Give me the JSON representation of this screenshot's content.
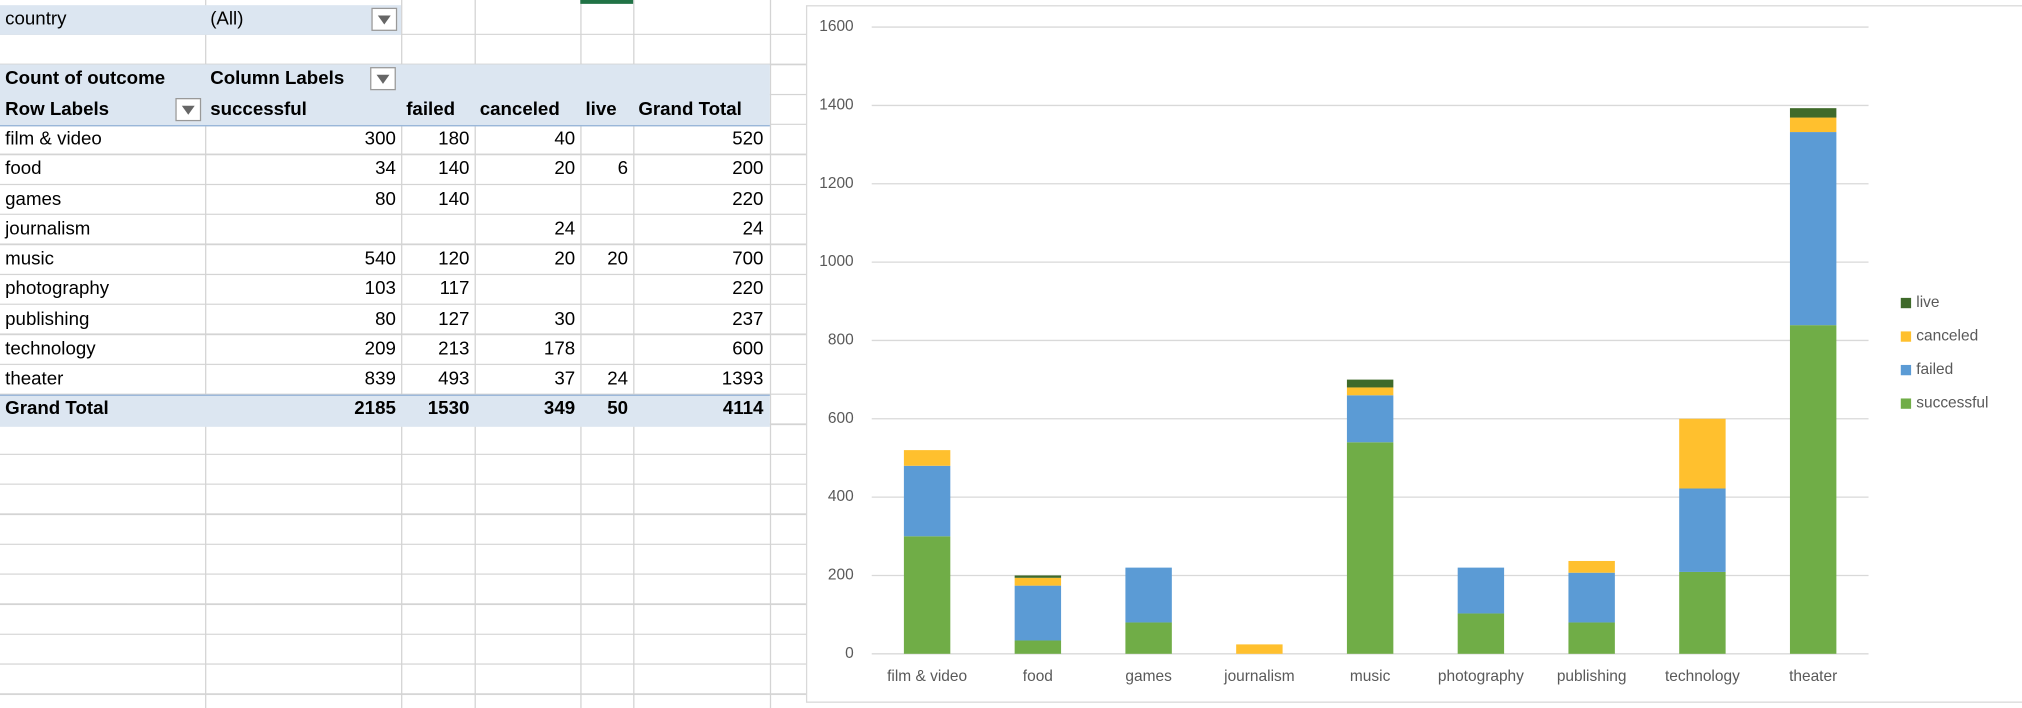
{
  "table": {
    "filter": {
      "label": "country",
      "value": "(All)"
    },
    "corner": "Count of outcome",
    "column_labels": "Column Labels",
    "row_labels": "Row Labels",
    "columns": [
      "successful",
      "failed",
      "canceled",
      "live",
      "Grand Total"
    ],
    "rows": [
      {
        "label": "film & video",
        "values": [
          300,
          180,
          40,
          null,
          520
        ]
      },
      {
        "label": "food",
        "values": [
          34,
          140,
          20,
          6,
          200
        ]
      },
      {
        "label": "games",
        "values": [
          80,
          140,
          null,
          null,
          220
        ]
      },
      {
        "label": "journalism",
        "values": [
          null,
          null,
          24,
          null,
          24
        ]
      },
      {
        "label": "music",
        "values": [
          540,
          120,
          20,
          20,
          700
        ]
      },
      {
        "label": "photography",
        "values": [
          103,
          117,
          null,
          null,
          220
        ]
      },
      {
        "label": "publishing",
        "values": [
          80,
          127,
          30,
          null,
          237
        ]
      },
      {
        "label": "technology",
        "values": [
          209,
          213,
          178,
          null,
          600
        ]
      },
      {
        "label": "theater",
        "values": [
          839,
          493,
          37,
          24,
          1393
        ]
      }
    ],
    "total": {
      "label": "Grand Total",
      "values": [
        2185,
        1530,
        349,
        50,
        4114
      ]
    }
  },
  "chart_data": {
    "type": "stacked_bar",
    "categories": [
      "film & video",
      "food",
      "games",
      "journalism",
      "music",
      "photography",
      "publishing",
      "technology",
      "theater"
    ],
    "series": [
      {
        "name": "successful",
        "color": "#70ad47",
        "values": [
          300,
          34,
          80,
          null,
          540,
          103,
          80,
          209,
          839
        ]
      },
      {
        "name": "failed",
        "color": "#5b9bd5",
        "values": [
          180,
          140,
          140,
          null,
          120,
          117,
          127,
          213,
          493
        ]
      },
      {
        "name": "canceled",
        "color": "#ffc02e",
        "values": [
          40,
          20,
          null,
          24,
          20,
          null,
          30,
          178,
          37
        ]
      },
      {
        "name": "live",
        "color": "#3f6a2a",
        "values": [
          null,
          6,
          null,
          null,
          20,
          null,
          null,
          null,
          24
        ]
      }
    ],
    "ylim": [
      0,
      1600
    ],
    "yticks": [
      0,
      200,
      400,
      600,
      800,
      1000,
      1200,
      1400,
      1600
    ],
    "grid": true,
    "legend": "right"
  }
}
